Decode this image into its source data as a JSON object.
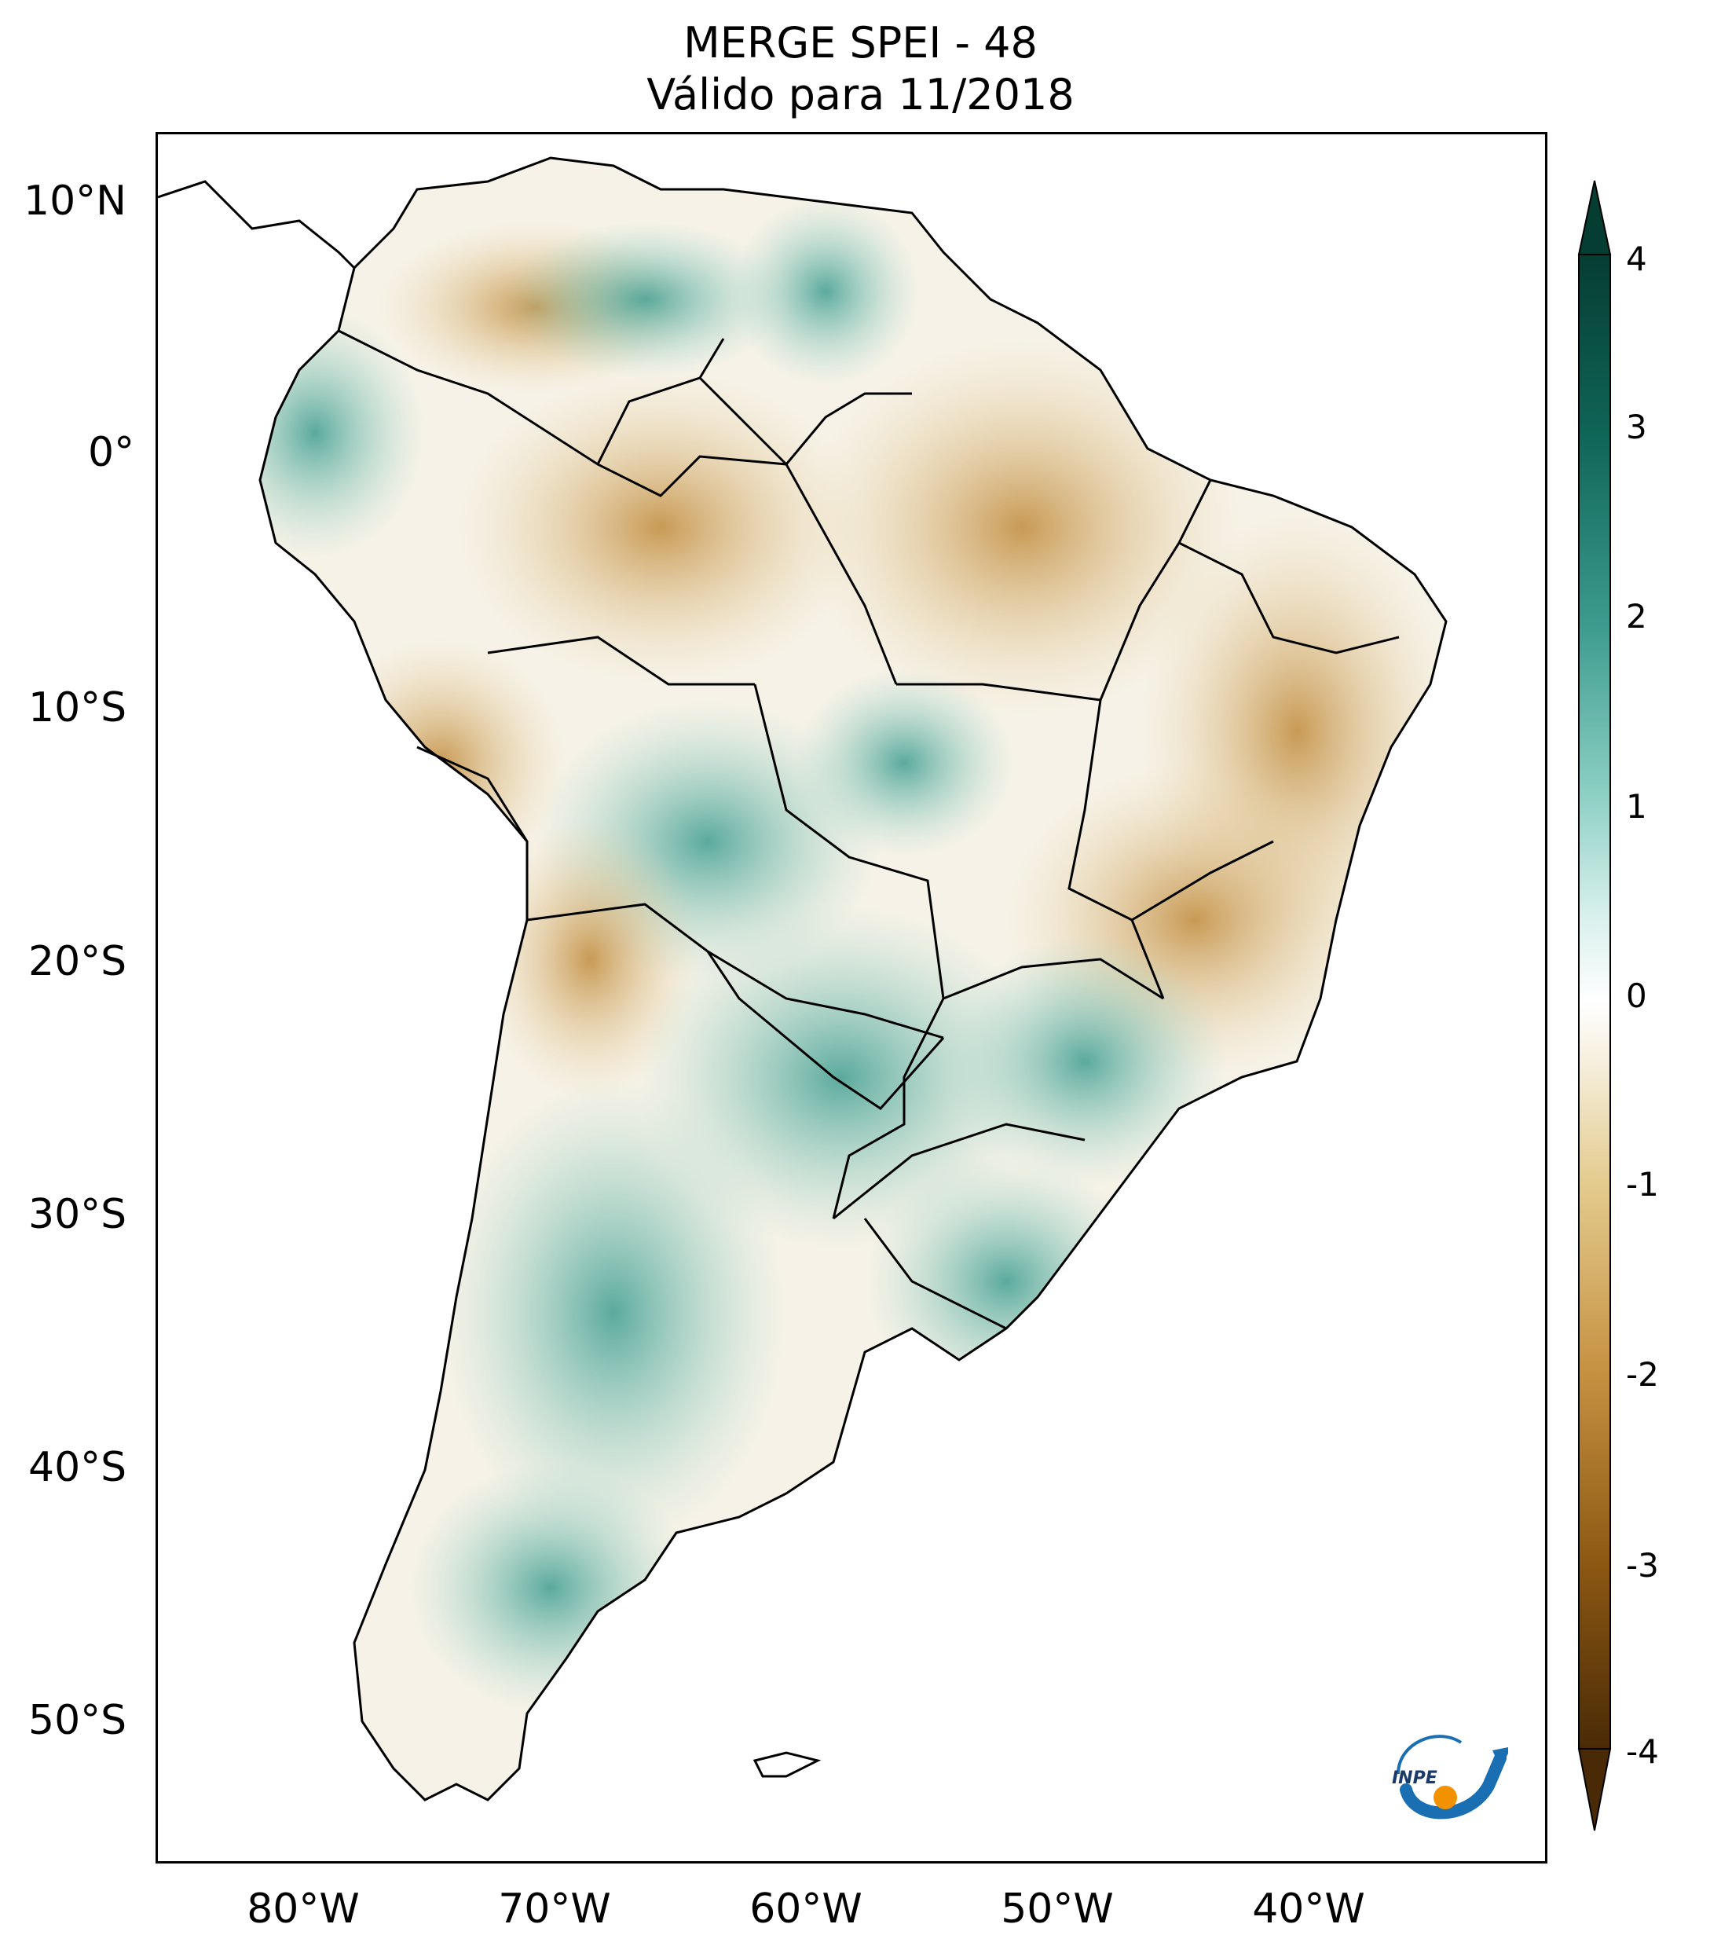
{
  "title": {
    "line1": "MERGE   SPEI - 48",
    "line2": "Válido para 11/2018"
  },
  "map": {
    "lat_ticks": [
      "10°N",
      "0°",
      "10°S",
      "20°S",
      "30°S",
      "40°S",
      "50°S"
    ],
    "lon_ticks": [
      "80°W",
      "70°W",
      "60°W",
      "50°W",
      "40°W"
    ],
    "land_color": "#f4f1e8",
    "drought_color": "#c9a25a",
    "wet_color": "#5fb6a8",
    "border_color": "#000000"
  },
  "colorbar": {
    "ticks": [
      "4",
      "3",
      "2",
      "1",
      "0",
      "-1",
      "-2",
      "-3",
      "-4"
    ],
    "min": -4,
    "max": 4,
    "extend": "both",
    "colors": [
      "#4a2a06",
      "#8a5712",
      "#c59040",
      "#e4cc8f",
      "#f6efdd",
      "#ffffff",
      "#d6efeb",
      "#8ccfc3",
      "#3d9c8f",
      "#0f6557",
      "#063d33"
    ]
  },
  "logo": {
    "text": "INPE",
    "accent": "#1a6fb3",
    "dot": "#f39200"
  }
}
